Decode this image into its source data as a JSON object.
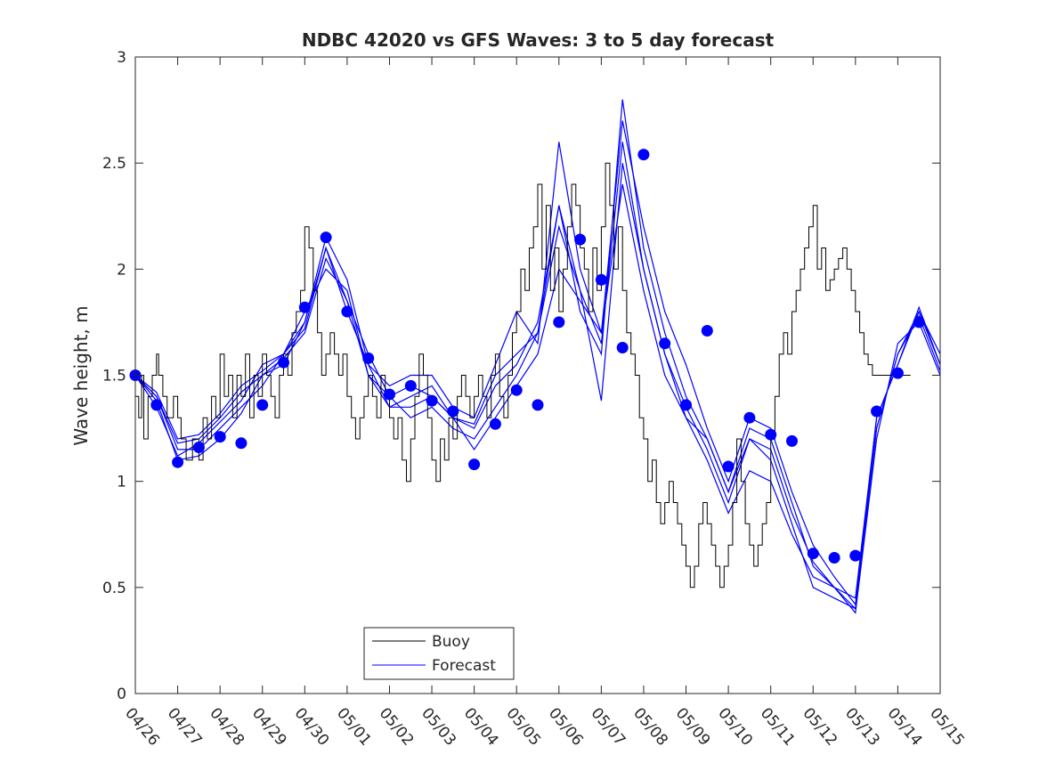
{
  "chart_data": {
    "type": "line",
    "title": "NDBC 42020 vs GFS Waves: 3 to 5 day forecast",
    "xlabel": "",
    "ylabel": "Wave height, m",
    "ylim": [
      0,
      3
    ],
    "xlim": [
      "04/26",
      "05/15"
    ],
    "x_ticks": [
      "04/26",
      "04/27",
      "04/28",
      "04/29",
      "04/30",
      "05/01",
      "05/02",
      "05/03",
      "05/04",
      "05/05",
      "05/06",
      "05/07",
      "05/08",
      "05/09",
      "05/10",
      "05/11",
      "05/12",
      "05/13",
      "05/14",
      "05/15"
    ],
    "y_ticks": [
      "0",
      "0.5",
      "1",
      "1.5",
      "2",
      "2.5",
      "3"
    ],
    "grid": false,
    "legend": {
      "placement": "bottom-left",
      "entries": [
        "Buoy",
        "Forecast"
      ]
    },
    "colors": {
      "buoy": "#000000",
      "forecast": "#0000ff",
      "axis": "#262626"
    },
    "series": [
      {
        "name": "Buoy",
        "kind": "step-line",
        "x_day_offset": [
          0,
          0.08,
          0.15,
          0.2,
          0.3,
          0.4,
          0.5,
          0.55,
          0.65,
          0.75,
          0.9,
          1.0,
          1.08,
          1.2,
          1.35,
          1.5,
          1.6,
          1.7,
          1.8,
          1.9,
          2.0,
          2.1,
          2.2,
          2.3,
          2.4,
          2.5,
          2.6,
          2.7,
          2.8,
          2.9,
          3.0,
          3.1,
          3.2,
          3.3,
          3.4,
          3.5,
          3.6,
          3.7,
          3.8,
          3.9,
          4.0,
          4.1,
          4.2,
          4.3,
          4.4,
          4.5,
          4.6,
          4.7,
          4.8,
          4.9,
          5.0,
          5.1,
          5.2,
          5.3,
          5.4,
          5.5,
          5.6,
          5.7,
          5.8,
          5.9,
          6.0,
          6.1,
          6.2,
          6.3,
          6.4,
          6.5,
          6.6,
          6.7,
          6.8,
          6.9,
          7.0,
          7.1,
          7.2,
          7.3,
          7.4,
          7.5,
          7.6,
          7.7,
          7.8,
          7.9,
          8.0,
          8.1,
          8.2,
          8.3,
          8.4,
          8.5,
          8.6,
          8.7,
          8.8,
          8.9,
          9.0,
          9.1,
          9.2,
          9.3,
          9.4,
          9.5,
          9.6,
          9.7,
          9.8,
          9.9,
          10.0,
          10.1,
          10.2,
          10.3,
          10.4,
          10.5,
          10.6,
          10.7,
          10.8,
          10.9,
          11.0,
          11.1,
          11.2,
          11.3,
          11.4,
          11.5,
          11.6,
          11.7,
          11.8,
          11.9,
          12.0,
          12.1,
          12.2,
          12.3,
          12.4,
          12.5,
          12.6,
          12.7,
          12.8,
          12.9,
          13.0,
          13.1,
          13.2,
          13.3,
          13.4,
          13.5,
          13.6,
          13.7,
          13.8,
          13.9,
          14.0,
          14.1,
          14.2,
          14.3,
          14.4,
          14.5,
          14.6,
          14.7,
          14.8,
          14.9,
          15.0,
          15.1,
          15.2,
          15.3,
          15.4,
          15.5,
          15.6,
          15.7,
          15.8,
          15.9,
          16.0,
          16.1,
          16.2,
          16.3,
          16.4,
          16.5,
          16.6,
          16.7,
          16.8,
          16.9,
          17.0,
          17.1,
          17.2,
          17.3,
          17.4,
          17.5,
          17.6,
          17.7,
          17.8,
          17.9,
          18.0,
          18.1,
          18.2,
          18.3
        ],
        "values": [
          1.4,
          1.3,
          1.5,
          1.2,
          1.4,
          1.5,
          1.6,
          1.5,
          1.4,
          1.3,
          1.4,
          1.3,
          1.2,
          1.1,
          1.2,
          1.1,
          1.3,
          1.2,
          1.4,
          1.3,
          1.6,
          1.4,
          1.5,
          1.3,
          1.5,
          1.4,
          1.6,
          1.3,
          1.5,
          1.4,
          1.6,
          1.5,
          1.4,
          1.3,
          1.5,
          1.6,
          1.5,
          1.7,
          1.8,
          1.9,
          2.2,
          2.1,
          1.9,
          1.7,
          1.5,
          1.6,
          1.7,
          1.6,
          1.5,
          1.6,
          1.4,
          1.3,
          1.2,
          1.3,
          1.4,
          1.5,
          1.4,
          1.3,
          1.5,
          1.4,
          1.3,
          1.2,
          1.3,
          1.1,
          1.0,
          1.2,
          1.4,
          1.6,
          1.5,
          1.3,
          1.1,
          1.0,
          1.2,
          1.1,
          1.3,
          1.2,
          1.4,
          1.5,
          1.4,
          1.3,
          1.4,
          1.5,
          1.4,
          1.3,
          1.5,
          1.6,
          1.4,
          1.3,
          1.5,
          1.7,
          1.8,
          2.0,
          1.9,
          2.1,
          2.2,
          2.4,
          2.0,
          2.3,
          1.9,
          2.1,
          1.8,
          2.0,
          2.2,
          2.4,
          2.3,
          2.1,
          2.0,
          1.8,
          2.1,
          1.9,
          2.2,
          2.5,
          2.3,
          2.0,
          2.2,
          1.9,
          1.7,
          1.6,
          1.5,
          1.3,
          1.2,
          1.0,
          1.1,
          0.9,
          0.8,
          0.9,
          1.0,
          0.9,
          0.8,
          0.7,
          0.6,
          0.5,
          0.6,
          0.8,
          0.9,
          0.8,
          0.7,
          0.6,
          0.5,
          0.6,
          0.7,
          0.9,
          1.2,
          1.0,
          0.8,
          0.7,
          0.6,
          0.7,
          0.8,
          0.9,
          1.2,
          1.4,
          1.6,
          1.7,
          1.6,
          1.8,
          1.9,
          2.0,
          2.1,
          2.2,
          2.3,
          2.0,
          2.1,
          1.9,
          1.95,
          2.0,
          2.05,
          2.1,
          2.0,
          1.9,
          1.8,
          1.7,
          1.6,
          1.55,
          1.5,
          1.5,
          1.5,
          1.5,
          1.5,
          1.5,
          1.5,
          1.5,
          1.5,
          1.5
        ]
      },
      {
        "name": "Forecast",
        "kind": "lines",
        "x_day_offset": [
          0,
          0.5,
          1.0,
          1.5,
          2.0,
          2.5,
          3.0,
          3.5,
          4.0,
          4.5,
          5.0,
          5.5,
          6.0,
          6.5,
          7.0,
          7.5,
          8.0,
          8.5,
          9.0,
          9.5,
          10.0,
          10.5,
          11.0,
          11.5,
          12.0,
          12.5,
          13.0,
          13.5,
          14.0,
          14.5,
          15.0,
          15.5,
          16.0,
          16.5,
          17.0,
          17.5,
          18.0,
          18.5,
          19.0
        ],
        "lines": [
          [
            1.5,
            1.4,
            1.15,
            1.15,
            1.25,
            1.35,
            1.45,
            1.6,
            1.75,
            2.1,
            1.8,
            1.55,
            1.35,
            1.35,
            1.4,
            1.3,
            1.15,
            1.3,
            1.45,
            1.6,
            2.0,
            1.85,
            1.7,
            2.4,
            1.9,
            1.5,
            1.3,
            1.1,
            0.85,
            1.05,
            1.0,
            0.75,
            0.55,
            0.5,
            0.45,
            1.3,
            1.55,
            1.8,
            1.6
          ],
          [
            1.5,
            1.38,
            1.1,
            1.12,
            1.2,
            1.32,
            1.5,
            1.58,
            1.7,
            2.05,
            1.85,
            1.6,
            1.4,
            1.3,
            1.35,
            1.25,
            1.2,
            1.35,
            1.5,
            1.7,
            2.2,
            1.9,
            1.65,
            2.6,
            2.0,
            1.6,
            1.35,
            1.15,
            0.9,
            1.2,
            1.1,
            0.8,
            0.5,
            0.45,
            0.4,
            1.25,
            1.6,
            1.8,
            1.55
          ],
          [
            1.5,
            1.35,
            1.12,
            1.18,
            1.28,
            1.38,
            1.55,
            1.6,
            1.8,
            2.0,
            1.9,
            1.5,
            1.35,
            1.4,
            1.45,
            1.3,
            1.25,
            1.45,
            1.55,
            1.75,
            2.3,
            1.8,
            1.6,
            2.8,
            2.1,
            1.7,
            1.4,
            1.2,
            0.95,
            1.25,
            1.2,
            0.9,
            0.6,
            0.5,
            0.38,
            1.2,
            1.65,
            1.75,
            1.5
          ],
          [
            1.5,
            1.4,
            1.18,
            1.2,
            1.3,
            1.42,
            1.5,
            1.55,
            1.75,
            2.15,
            1.95,
            1.55,
            1.45,
            1.5,
            1.5,
            1.35,
            1.3,
            1.55,
            1.8,
            1.65,
            2.6,
            2.0,
            1.7,
            2.7,
            2.2,
            1.8,
            1.55,
            1.25,
            1.0,
            1.3,
            1.25,
            0.95,
            0.7,
            0.55,
            0.42,
            1.3,
            1.55,
            1.82,
            1.55
          ],
          [
            1.5,
            1.42,
            1.2,
            1.22,
            1.32,
            1.45,
            1.52,
            1.6,
            1.72,
            2.1,
            1.85,
            1.5,
            1.4,
            1.45,
            1.4,
            1.3,
            1.27,
            1.5,
            1.6,
            1.7,
            2.3,
            1.9,
            1.38,
            2.5,
            2.0,
            1.6,
            1.3,
            1.2,
            0.95,
            1.2,
            1.15,
            0.85,
            0.62,
            0.5,
            0.4,
            1.25,
            1.6,
            1.78,
            1.52
          ]
        ],
        "markers": {
          "x_day_offset": [
            0,
            0.5,
            1.0,
            1.5,
            2.0,
            2.5,
            3.0,
            3.5,
            4.0,
            4.5,
            5.0,
            5.5,
            6.0,
            6.5,
            7.0,
            7.5,
            8.0,
            8.5,
            9.0,
            9.5,
            10.0,
            10.5,
            11.0,
            11.5,
            12.0,
            12.5,
            13.0,
            13.5,
            14.0,
            14.5,
            15.0,
            15.5,
            16.0,
            16.5,
            17.0,
            17.5,
            18.0,
            18.5
          ],
          "values": [
            1.5,
            1.36,
            1.09,
            1.16,
            1.21,
            1.18,
            1.36,
            1.56,
            1.82,
            2.15,
            1.8,
            1.58,
            1.41,
            1.45,
            1.38,
            1.33,
            1.08,
            1.27,
            1.43,
            1.36,
            1.75,
            2.14,
            1.95,
            1.63,
            2.54,
            1.65,
            1.36,
            1.71,
            1.07,
            1.3,
            1.22,
            1.19,
            0.66,
            0.64,
            0.65,
            1.33,
            1.51,
            1.75
          ]
        }
      }
    ]
  }
}
